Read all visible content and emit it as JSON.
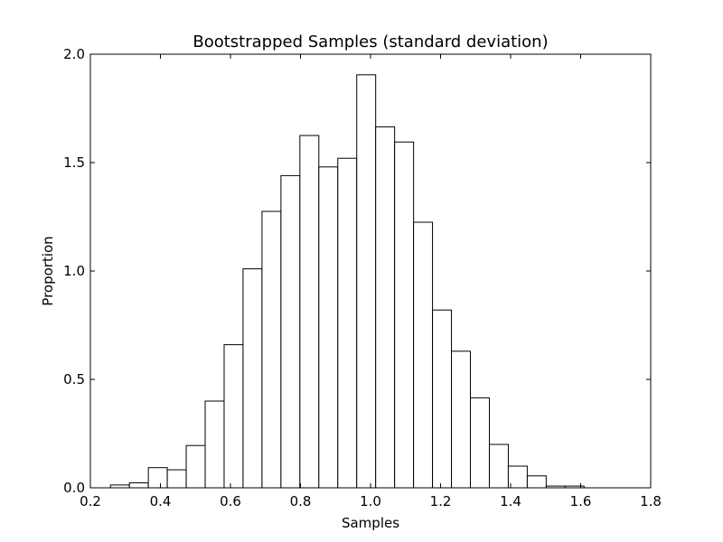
{
  "chart_data": {
    "type": "bar",
    "title": "Bootstrapped Samples (standard deviation)",
    "xlabel": "Samples",
    "ylabel": "Proportion",
    "xlim": [
      0.2,
      1.8
    ],
    "ylim": [
      0.0,
      2.0
    ],
    "grid": false,
    "legend": "none",
    "bar_fill": "#ffffff",
    "bar_stroke": "#000000",
    "x_ticks": [
      "0.2",
      "0.4",
      "0.6",
      "0.8",
      "1.0",
      "1.2",
      "1.4",
      "1.6",
      "1.8"
    ],
    "y_ticks": [
      "0.0",
      "0.5",
      "1.0",
      "1.5",
      "2.0"
    ],
    "bins": [
      {
        "left": 0.2573,
        "right": 0.3114,
        "value": 0.013
      },
      {
        "left": 0.3114,
        "right": 0.3655,
        "value": 0.023
      },
      {
        "left": 0.3655,
        "right": 0.4196,
        "value": 0.093
      },
      {
        "left": 0.4196,
        "right": 0.4737,
        "value": 0.083
      },
      {
        "left": 0.4737,
        "right": 0.5278,
        "value": 0.195
      },
      {
        "left": 0.5278,
        "right": 0.5819,
        "value": 0.4
      },
      {
        "left": 0.5819,
        "right": 0.636,
        "value": 0.66
      },
      {
        "left": 0.636,
        "right": 0.6901,
        "value": 1.01
      },
      {
        "left": 0.6901,
        "right": 0.7442,
        "value": 1.275
      },
      {
        "left": 0.7442,
        "right": 0.7983,
        "value": 1.44
      },
      {
        "left": 0.7983,
        "right": 0.8524,
        "value": 1.625
      },
      {
        "left": 0.8524,
        "right": 0.9065,
        "value": 1.48
      },
      {
        "left": 0.9065,
        "right": 0.9606,
        "value": 1.52
      },
      {
        "left": 0.9606,
        "right": 1.0147,
        "value": 1.905
      },
      {
        "left": 1.0147,
        "right": 1.0688,
        "value": 1.665
      },
      {
        "left": 1.0688,
        "right": 1.1229,
        "value": 1.595
      },
      {
        "left": 1.1229,
        "right": 1.177,
        "value": 1.225
      },
      {
        "left": 1.177,
        "right": 1.2311,
        "value": 0.82
      },
      {
        "left": 1.2311,
        "right": 1.2852,
        "value": 0.63
      },
      {
        "left": 1.2852,
        "right": 1.3393,
        "value": 0.415
      },
      {
        "left": 1.3393,
        "right": 1.3934,
        "value": 0.2
      },
      {
        "left": 1.3934,
        "right": 1.4475,
        "value": 0.1
      },
      {
        "left": 1.4475,
        "right": 1.5016,
        "value": 0.055
      },
      {
        "left": 1.5016,
        "right": 1.5557,
        "value": 0.008
      },
      {
        "left": 1.5557,
        "right": 1.6098,
        "value": 0.008
      }
    ]
  }
}
